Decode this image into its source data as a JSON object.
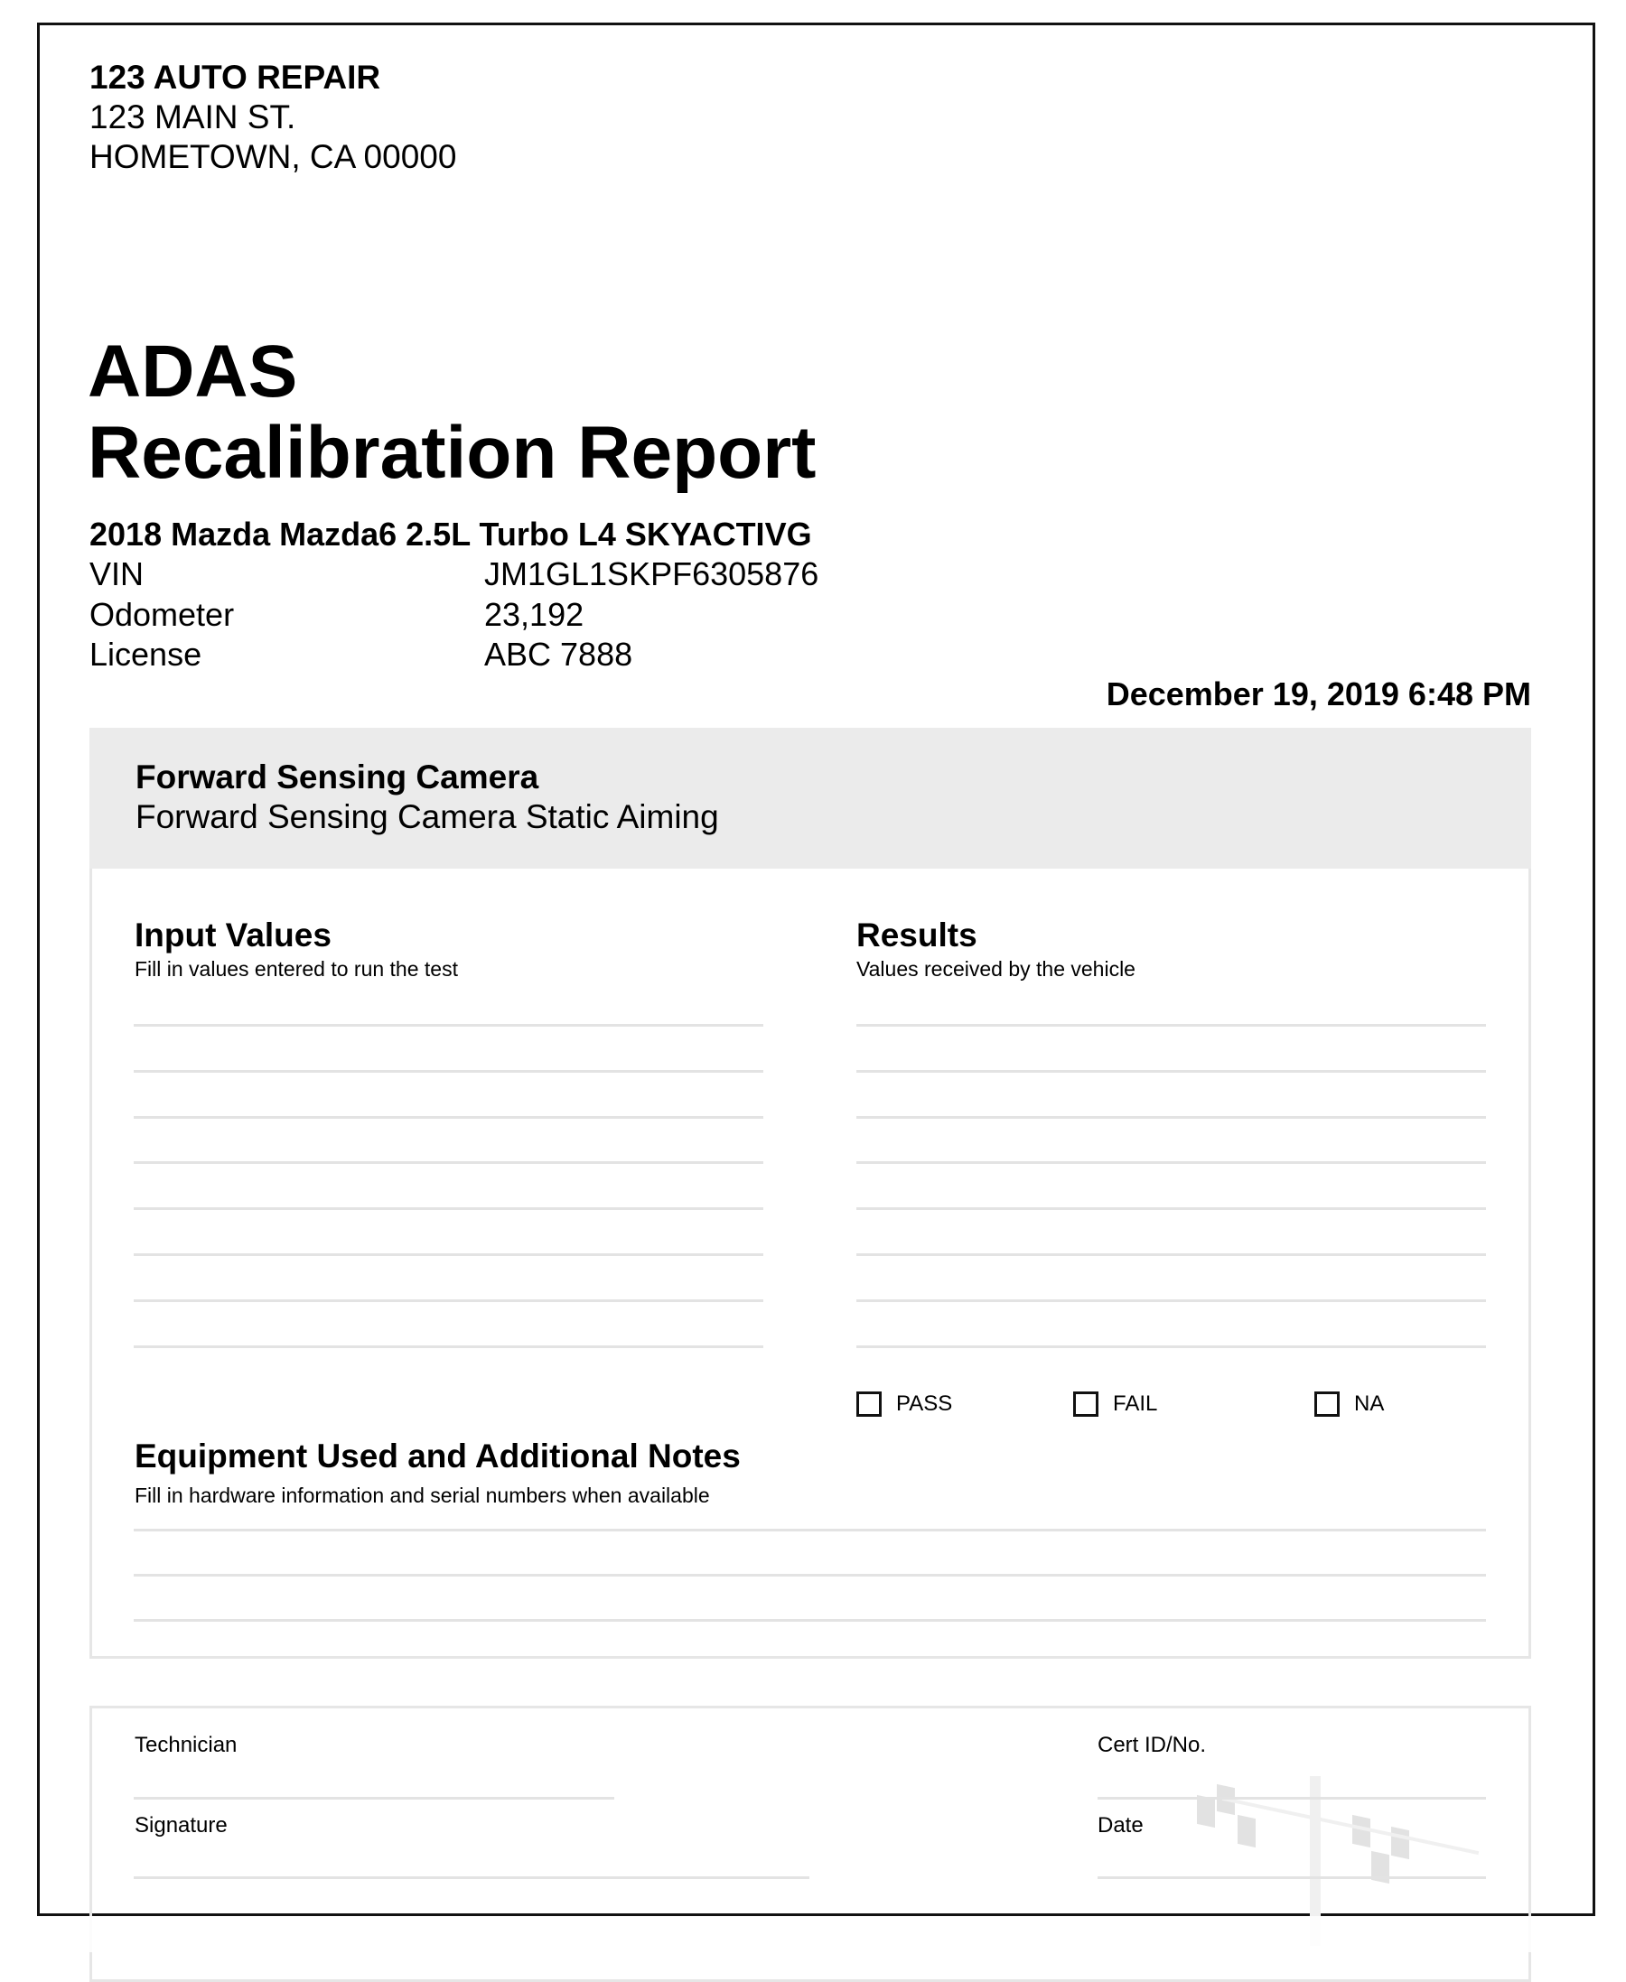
{
  "shop": {
    "name": "123 AUTO REPAIR",
    "street": "123 MAIN ST.",
    "city": "HOMETOWN, CA 00000"
  },
  "report": {
    "title_line1": "ADAS",
    "title_line2": "Recalibration Report"
  },
  "vehicle": {
    "description": "2018 Mazda Mazda6 2.5L Turbo L4 SKYACTIVG",
    "fields": [
      {
        "label": "VIN",
        "value": "JM1GL1SKPF6305876"
      },
      {
        "label": "Odometer",
        "value": "23,192"
      },
      {
        "label": "License",
        "value": "ABC 7888"
      }
    ]
  },
  "datetime": "December 19, 2019 6:48 PM",
  "system": {
    "name": "Forward Sensing Camera",
    "procedure": "Forward Sensing Camera Static Aiming"
  },
  "input_values": {
    "heading": "Input Values",
    "subtitle": "Fill in values entered to run the test"
  },
  "results": {
    "heading": "Results",
    "subtitle": "Values received by the vehicle",
    "options": [
      {
        "label": "PASS",
        "checked": false
      },
      {
        "label": "FAIL",
        "checked": false
      },
      {
        "label": "NA",
        "checked": false
      }
    ]
  },
  "equipment": {
    "heading": "Equipment Used and Additional Notes",
    "subtitle": "Fill in hardware information and serial numbers when available"
  },
  "signoff": {
    "technician": "Technician",
    "signature": "Signature",
    "cert": "Cert ID/No.",
    "date": "Date"
  }
}
